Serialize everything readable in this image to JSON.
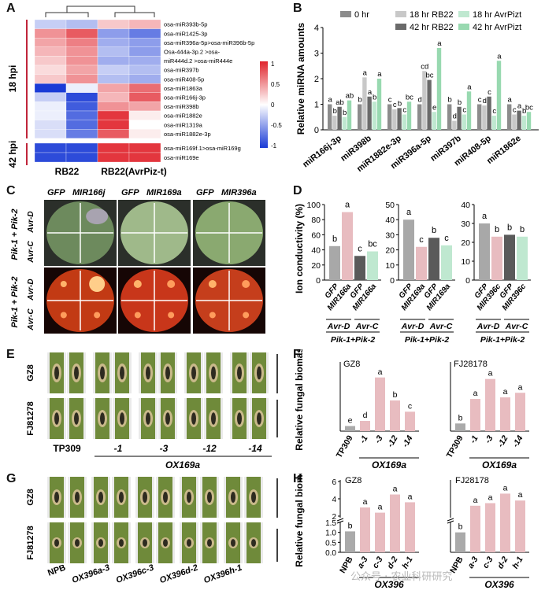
{
  "panel_labels": [
    "A",
    "B",
    "C",
    "D",
    "E",
    "F",
    "G",
    "H"
  ],
  "panelA": {
    "groups": [
      "18 hpi",
      "42 hpi"
    ],
    "samples": [
      "RB22",
      "RB22(AvrPiz-t)"
    ],
    "rows": [
      {
        "label": "osa-miR393b-5p",
        "v": [
          -0.3,
          -0.4,
          0.3,
          0.4
        ]
      },
      {
        "label": "osa-miR1425-3p",
        "v": [
          0.6,
          0.9,
          -0.6,
          -0.8
        ]
      },
      {
        "label": "osa-miR396a-5p>osa-miR396b-5p",
        "v": [
          0.5,
          0.7,
          -0.5,
          -0.6
        ]
      },
      {
        "label": "Osa-444a-3p.2 >osa-",
        "v": [
          0.4,
          0.6,
          -0.4,
          -0.6
        ]
      },
      {
        "label": "miR444d.2 >osa-miR444e",
        "v": [
          0.3,
          0.6,
          -0.5,
          -0.5
        ]
      },
      {
        "label": "osa-miR397b",
        "v": [
          0.2,
          0.5,
          -0.3,
          -0.4
        ]
      },
      {
        "label": "osa-miR408-5p",
        "v": [
          0.3,
          0.6,
          -0.4,
          -0.5
        ]
      },
      {
        "label": "osa-miR1863a",
        "v": [
          -1.2,
          -0.1,
          0.5,
          0.8
        ]
      },
      {
        "label": "osa-miR166j-3p",
        "v": [
          -0.3,
          -1.1,
          0.4,
          0.9
        ]
      },
      {
        "label": "osa-miR398b",
        "v": [
          -0.1,
          -1.0,
          0.6,
          0.5
        ]
      },
      {
        "label": "osa-miR1882e",
        "v": [
          -0.1,
          -0.9,
          1.1,
          0.1
        ]
      },
      {
        "label": "osa-miR1319a",
        "v": [
          -0.2,
          -0.9,
          1.1,
          0.0
        ]
      },
      {
        "label": "osa-miR1882e-3p",
        "v": [
          -0.2,
          -0.8,
          0.9,
          0.1
        ]
      }
    ],
    "rows42": [
      {
        "label": "osa-miR169f.1>osa-miR169g",
        "v": [
          -1.1,
          -1.1,
          1.1,
          1.1
        ]
      },
      {
        "label": "osa-miR169e",
        "v": [
          -1.1,
          -1.1,
          1.1,
          1.1
        ]
      }
    ],
    "scale_ticks": [
      "1",
      "0.5",
      "0",
      "-0.5",
      "-1"
    ],
    "colors": {
      "high": "#e0242c",
      "mid": "#ffffff",
      "low": "#1a3bd6"
    }
  },
  "chart_data": [
    {
      "panel": "B",
      "type": "bar",
      "ylabel": "Relative miRNA amounts",
      "ylim": [
        0,
        4
      ],
      "yticks": [
        "0",
        "1",
        "2",
        "3",
        "4"
      ],
      "categories": [
        "miR166j-3p",
        "miR398b",
        "miR1882e-3p",
        "miR396a-5p",
        "miR397b",
        "miR408-5p",
        "miR1862e"
      ],
      "series": [
        {
          "name": "0 hr",
          "color": "#8c8c8c",
          "values": [
            1.0,
            1.0,
            1.0,
            1.0,
            1.0,
            1.0,
            1.0
          ]
        },
        {
          "name": "18 hr RB22",
          "color": "#c8c8c8",
          "values": [
            0.55,
            2.05,
            0.8,
            2.3,
            0.35,
            0.95,
            0.6
          ]
        },
        {
          "name": "42 hr RB22",
          "color": "#6a6a6a",
          "values": [
            0.9,
            1.3,
            0.85,
            1.95,
            0.9,
            1.3,
            0.75
          ]
        },
        {
          "name": "18 hr AvrPizt",
          "color": "#bfe8d0",
          "values": [
            0.5,
            1.1,
            0.6,
            0.7,
            0.6,
            0.55,
            0.55
          ]
        },
        {
          "name": "42 hr AvrPizt",
          "color": "#98d9b0",
          "values": [
            1.15,
            2.0,
            1.1,
            3.2,
            1.5,
            2.7,
            0.7
          ]
        }
      ],
      "letters": [
        [
          "a",
          "b",
          "ab",
          "b",
          "ab"
        ],
        [
          "b",
          "a",
          "a",
          "b",
          "a"
        ],
        [
          "c",
          "c",
          "b",
          "c",
          "bc"
        ],
        [
          "d",
          "cd",
          "bc",
          "e",
          "a"
        ],
        [
          "b",
          "d",
          "b",
          "c",
          "a"
        ],
        [
          "c",
          "d",
          "c",
          "c",
          "a"
        ],
        [
          "a",
          "c",
          "a",
          "b",
          "bc"
        ]
      ]
    },
    {
      "panel": "D1",
      "type": "bar",
      "ylabel": "Ion conductivity (%)",
      "ylim": [
        0,
        100
      ],
      "yticks": [
        "0",
        "20",
        "40",
        "60",
        "80",
        "100"
      ],
      "categories": [
        "GFP",
        "MIR166a",
        "GFP",
        "MIR166a"
      ],
      "values": [
        45,
        90,
        32,
        38
      ],
      "letters": [
        "b",
        "a",
        "c",
        "bc"
      ],
      "colors": [
        "#a8a8a8",
        "#e8bcc0",
        "#5a5a5a",
        "#bfe8d0"
      ],
      "groups": [
        "Avr-D",
        "Avr-C"
      ],
      "construct": "Pik-1+Pik-2"
    },
    {
      "panel": "D2",
      "type": "bar",
      "ylim": [
        0,
        50
      ],
      "yticks": [
        "0",
        "10",
        "20",
        "30",
        "40",
        "50"
      ],
      "categories": [
        "GFP",
        "MIR169a",
        "GFP",
        "MIR169a"
      ],
      "values": [
        40,
        22,
        28,
        23
      ],
      "letters": [
        "a",
        "c",
        "b",
        "c"
      ],
      "colors": [
        "#a8a8a8",
        "#e8bcc0",
        "#5a5a5a",
        "#bfe8d0"
      ],
      "groups": [
        "Avr-D",
        "Avr-C"
      ],
      "construct": "Pik-1+Pik-2"
    },
    {
      "panel": "D3",
      "type": "bar",
      "ylim": [
        0,
        40
      ],
      "yticks": [
        "0",
        "10",
        "20",
        "30",
        "40"
      ],
      "categories": [
        "GFP",
        "MIR396c",
        "GFP",
        "MIR396c"
      ],
      "values": [
        30,
        23,
        24,
        23
      ],
      "letters": [
        "a",
        "b",
        "b",
        "b"
      ],
      "colors": [
        "#a8a8a8",
        "#e8bcc0",
        "#5a5a5a",
        "#bfe8d0"
      ],
      "groups": [
        "Avr-D",
        "Avr-C"
      ],
      "construct": "Pik-1+Pik-2"
    },
    {
      "panel": "F1",
      "type": "bar",
      "title": "GZ8",
      "ylabel": "Relative fungal biomass",
      "categories": [
        "TP309",
        "-1",
        "-3",
        "-12",
        "-14"
      ],
      "values": [
        1.0,
        2.0,
        10.5,
        6.0,
        3.8
      ],
      "ylim": [
        0,
        12
      ],
      "letters": [
        "e",
        "d",
        "a",
        "b",
        "c"
      ],
      "group": "OX169a"
    },
    {
      "panel": "F2",
      "type": "bar",
      "title": "FJ28178",
      "categories": [
        "TP309",
        "-1",
        "-3",
        "-12",
        "-14"
      ],
      "values": [
        1.0,
        4.2,
        6.8,
        4.4,
        5.0
      ],
      "ylim": [
        0,
        8
      ],
      "letters": [
        "b",
        "a",
        "a",
        "a",
        "a"
      ],
      "group": "OX169a"
    },
    {
      "panel": "H1",
      "type": "bar",
      "title": "GZ8",
      "ylabel": "Relative fungal biomass",
      "yticks": [
        "0.0",
        "0.5",
        "1.0",
        "1.5",
        "2",
        "4",
        "6"
      ],
      "categories": [
        "NPB",
        "a-3",
        "c-3",
        "d-2",
        "h-1"
      ],
      "values": [
        1.05,
        3.0,
        2.4,
        4.5,
        3.6
      ],
      "letters": [
        "b",
        "a",
        "a",
        "a",
        "a"
      ],
      "group": "OX396"
    },
    {
      "panel": "H2",
      "type": "bar",
      "title": "FJ28178",
      "categories": [
        "NPB",
        "a-3",
        "c-3",
        "d-2",
        "h-1"
      ],
      "values": [
        1.0,
        3.2,
        3.5,
        4.6,
        3.8
      ],
      "letters": [
        "b",
        "a",
        "a",
        "a",
        "a"
      ],
      "group": "OX396"
    }
  ],
  "panelC": {
    "cols": [
      "GFP",
      "MIR166j",
      "GFP",
      "MIR169a",
      "GFP",
      "MIR396a"
    ],
    "rows": [
      "Pik-1 + Pik-2",
      "Pik-1 + Pik-2"
    ],
    "quad": [
      "Avr-D",
      "Avr-C"
    ]
  },
  "panelE": {
    "rows": [
      "GZ8",
      "FJ81278"
    ],
    "labels": [
      "TP309",
      "-1",
      "-3",
      "-12",
      "-14"
    ],
    "group": "OX169a"
  },
  "panelG": {
    "rows": [
      "GZ8",
      "FJ81278"
    ],
    "labels": [
      "NPB",
      "OX396a-3",
      "OX396c-3",
      "OX396d-2",
      "OX396h-1"
    ]
  },
  "watermark": "公众号 · 农业科研研究"
}
